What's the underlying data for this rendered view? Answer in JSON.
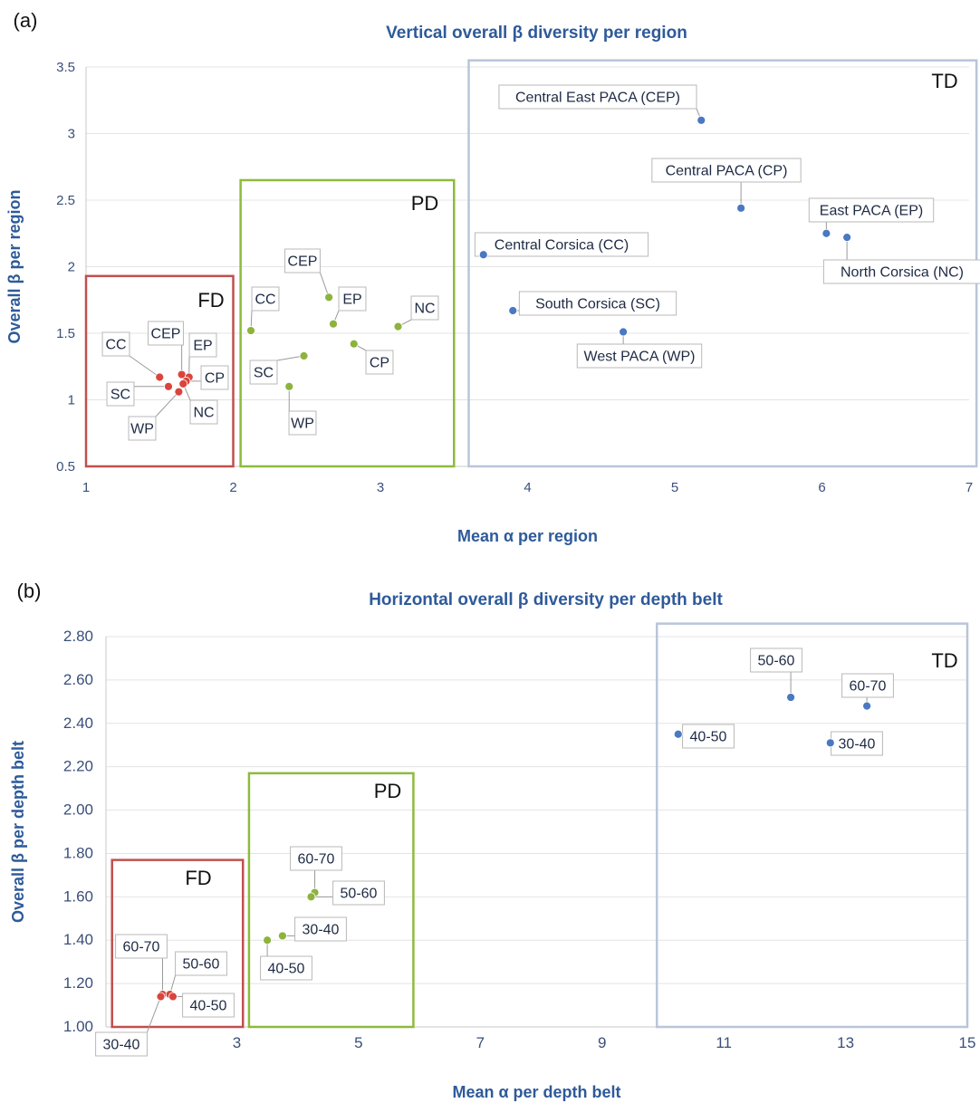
{
  "colors": {
    "FD": "#d9453c",
    "PD": "#8db33d",
    "TD": "#4a78c2",
    "box_FD": "#c0504d",
    "box_PD": "#8dbb3c",
    "box_TD": "#b9c5d9",
    "title": "#2e5a9a"
  },
  "chart_data": [
    {
      "panel": "(a)",
      "type": "scatter",
      "title": "Vertical overall β diversity per region",
      "xlabel": "Mean α per region",
      "ylabel": "Overall β per region",
      "xlim": [
        1,
        7
      ],
      "ylim": [
        0.5,
        3.5
      ],
      "xticks": [
        1,
        2,
        3,
        4,
        5,
        6,
        7
      ],
      "yticks": [
        0.5,
        1,
        1.5,
        2,
        2.5,
        3,
        3.5
      ],
      "ytick_labels": [
        "0.5",
        "1",
        "1.5",
        "2",
        "2.5",
        "3",
        "3.5"
      ],
      "grid": true,
      "groups": [
        {
          "name": "FD",
          "box": {
            "x": [
              1,
              2
            ],
            "y": [
              0.5,
              1.93
            ]
          },
          "points": [
            {
              "label": "CC",
              "x": 1.5,
              "y": 1.17
            },
            {
              "label": "CEP",
              "x": 1.65,
              "y": 1.19
            },
            {
              "label": "EP",
              "x": 1.7,
              "y": 1.17
            },
            {
              "label": "CP",
              "x": 1.68,
              "y": 1.14
            },
            {
              "label": "NC",
              "x": 1.66,
              "y": 1.12
            },
            {
              "label": "SC",
              "x": 1.56,
              "y": 1.1
            },
            {
              "label": "WP",
              "x": 1.63,
              "y": 1.06
            }
          ]
        },
        {
          "name": "PD",
          "box": {
            "x": [
              2.05,
              3.5
            ],
            "y": [
              0.5,
              2.65
            ]
          },
          "points": [
            {
              "label": "CC",
              "x": 2.12,
              "y": 1.52
            },
            {
              "label": "CEP",
              "x": 2.65,
              "y": 1.77
            },
            {
              "label": "EP",
              "x": 2.68,
              "y": 1.57
            },
            {
              "label": "NC",
              "x": 3.12,
              "y": 1.55
            },
            {
              "label": "CP",
              "x": 2.82,
              "y": 1.42
            },
            {
              "label": "SC",
              "x": 2.48,
              "y": 1.33
            },
            {
              "label": "WP",
              "x": 2.38,
              "y": 1.1
            }
          ]
        },
        {
          "name": "TD",
          "box": {
            "x": [
              3.6,
              7.05
            ],
            "y": [
              0.5,
              3.55
            ]
          },
          "points": [
            {
              "label": "Central East PACA (CEP)",
              "x": 5.18,
              "y": 3.1
            },
            {
              "label": "Central PACA (CP)",
              "x": 5.45,
              "y": 2.44
            },
            {
              "label": "East PACA (EP)",
              "x": 6.03,
              "y": 2.25
            },
            {
              "label": "North Corsica (NC)",
              "x": 6.17,
              "y": 2.22
            },
            {
              "label": "Central Corsica (CC)",
              "x": 3.7,
              "y": 2.09
            },
            {
              "label": "South Corsica (SC)",
              "x": 3.9,
              "y": 1.67
            },
            {
              "label": "West PACA (WP)",
              "x": 4.65,
              "y": 1.51
            }
          ]
        }
      ]
    },
    {
      "panel": "(b)",
      "type": "scatter",
      "title": "Horizontal overall β diversity per depth belt",
      "xlabel": "Mean α per depth belt",
      "ylabel": "Overall β per depth belt",
      "xlim": [
        0.85,
        15
      ],
      "ylim": [
        1.0,
        2.8
      ],
      "xticks": [
        1,
        3,
        5,
        7,
        9,
        11,
        13,
        15
      ],
      "yticks": [
        1.0,
        1.2,
        1.4,
        1.6,
        1.8,
        2.0,
        2.2,
        2.4,
        2.6,
        2.8
      ],
      "ytick_labels": [
        "1.00",
        "1.20",
        "1.40",
        "1.60",
        "1.80",
        "2.00",
        "2.20",
        "2.40",
        "2.60",
        "2.80"
      ],
      "grid": true,
      "groups": [
        {
          "name": "FD",
          "box": {
            "x": [
              0.95,
              3.1
            ],
            "y": [
              1.0,
              1.77
            ]
          },
          "points": [
            {
              "label": "60-70",
              "x": 1.78,
              "y": 1.15
            },
            {
              "label": "50-60",
              "x": 1.9,
              "y": 1.15
            },
            {
              "label": "40-50",
              "x": 1.95,
              "y": 1.14
            },
            {
              "label": "30-40",
              "x": 1.75,
              "y": 1.14
            }
          ]
        },
        {
          "name": "PD",
          "box": {
            "x": [
              3.2,
              5.9
            ],
            "y": [
              1.0,
              2.17
            ]
          },
          "points": [
            {
              "label": "60-70",
              "x": 4.28,
              "y": 1.62
            },
            {
              "label": "50-60",
              "x": 4.22,
              "y": 1.6
            },
            {
              "label": "30-40",
              "x": 3.75,
              "y": 1.42
            },
            {
              "label": "40-50",
              "x": 3.5,
              "y": 1.4
            }
          ]
        },
        {
          "name": "TD",
          "box": {
            "x": [
              9.9,
              15.0
            ],
            "y": [
              1.0,
              2.86
            ]
          },
          "points": [
            {
              "label": "50-60",
              "x": 12.1,
              "y": 2.52
            },
            {
              "label": "60-70",
              "x": 13.35,
              "y": 2.48
            },
            {
              "label": "40-50",
              "x": 10.25,
              "y": 2.35
            },
            {
              "label": "30-40",
              "x": 12.75,
              "y": 2.31
            }
          ]
        }
      ]
    }
  ]
}
